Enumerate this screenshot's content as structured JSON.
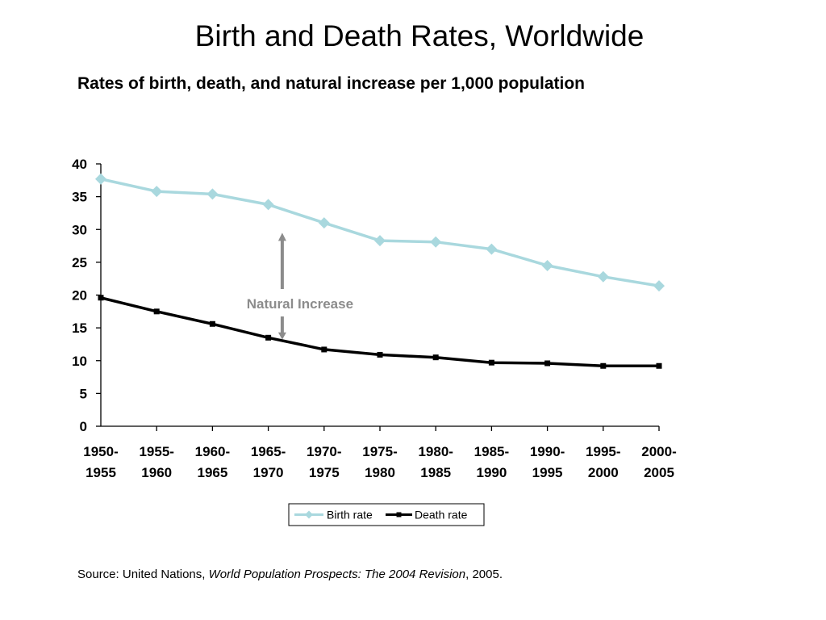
{
  "title": "Birth and Death Rates, Worldwide",
  "subtitle": "Rates of birth, death, and natural increase per 1,000 population",
  "source": {
    "prefix": "Source: United Nations, ",
    "italic": "World Population Prospects: The 2004 Revision",
    "suffix": ", 2005."
  },
  "colors": {
    "birth": "#a9d8de",
    "death": "#000000",
    "annotation": "#8c8c8c"
  },
  "chart_data": {
    "type": "line",
    "title": "Birth and Death Rates, Worldwide",
    "subtitle": "Rates of birth, death, and natural increase per 1,000 population",
    "xlabel": "",
    "ylabel": "",
    "ylim": [
      0,
      40
    ],
    "yticks": [
      0,
      5,
      10,
      15,
      20,
      25,
      30,
      35,
      40
    ],
    "grid": false,
    "legend_position": "bottom",
    "categories": [
      [
        "1950-",
        "1955"
      ],
      [
        "1955-",
        "1960"
      ],
      [
        "1960-",
        "1965"
      ],
      [
        "1965-",
        "1970"
      ],
      [
        "1970-",
        "1975"
      ],
      [
        "1975-",
        "1980"
      ],
      [
        "1980-",
        "1985"
      ],
      [
        "1985-",
        "1990"
      ],
      [
        "1990-",
        "1995"
      ],
      [
        "1995-",
        "2000"
      ],
      [
        "2000-",
        "2005"
      ]
    ],
    "series": [
      {
        "name": "Birth rate",
        "marker": "diamond",
        "values": [
          37.7,
          35.8,
          35.4,
          33.8,
          31.0,
          28.3,
          28.1,
          27.0,
          24.5,
          22.8,
          21.4
        ]
      },
      {
        "name": "Death rate",
        "marker": "square",
        "values": [
          19.6,
          17.5,
          15.6,
          13.5,
          11.7,
          10.9,
          10.5,
          9.7,
          9.6,
          9.2,
          9.2
        ]
      }
    ],
    "annotations": [
      {
        "text": "Natural  Increase",
        "type": "double-arrow",
        "category_index": 3.25,
        "from_value": 13.2,
        "to_value": 29.5
      }
    ]
  }
}
